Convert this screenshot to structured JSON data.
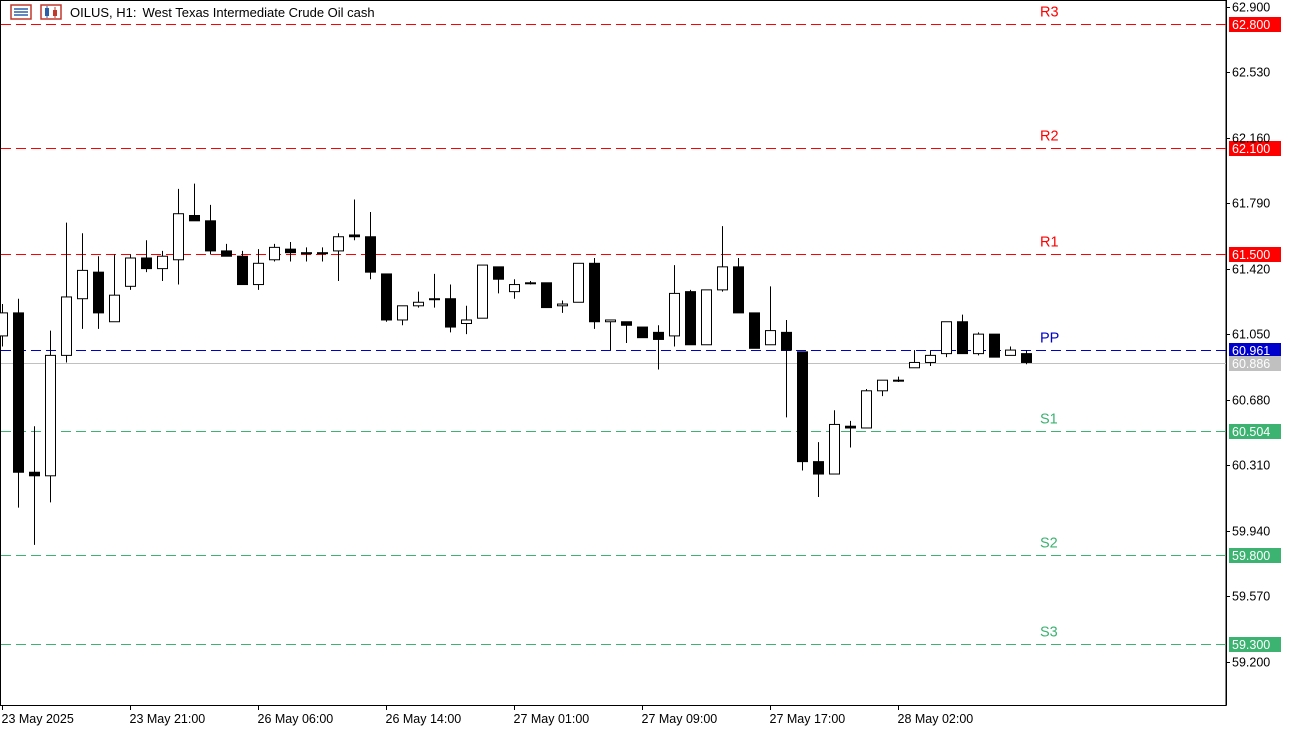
{
  "header": {
    "symbol": "OILUS, H1:",
    "description": "West Texas Intermediate Crude Oil cash"
  },
  "chart_data": {
    "type": "candlestick",
    "symbol": "OILUS",
    "timeframe": "H1",
    "y_axis": {
      "min": 58.95,
      "max": 62.92,
      "ticks": [
        "62.900",
        "62.530",
        "62.160",
        "61.790",
        "61.420",
        "61.050",
        "60.680",
        "60.310",
        "59.940",
        "59.570",
        "59.200"
      ]
    },
    "x_axis": {
      "ticks": [
        {
          "label": "23 May 2025",
          "bar": 0
        },
        {
          "label": "23 May 21:00",
          "bar": 8
        },
        {
          "label": "26 May 06:00",
          "bar": 16
        },
        {
          "label": "26 May 14:00",
          "bar": 24
        },
        {
          "label": "27 May 01:00",
          "bar": 32
        },
        {
          "label": "27 May 09:00",
          "bar": 40
        },
        {
          "label": "27 May 17:00",
          "bar": 48
        },
        {
          "label": "28 May 02:00",
          "bar": 56
        }
      ]
    },
    "pivot_levels": [
      {
        "name": "R3",
        "value": 62.8,
        "label": "62.800",
        "color": "#ff0000",
        "label_bg": "#ff0000"
      },
      {
        "name": "R2",
        "value": 62.1,
        "label": "62.100",
        "color": "#ff0000",
        "label_bg": "#ff0000"
      },
      {
        "name": "R1",
        "value": 61.5,
        "label": "61.500",
        "color": "#ff0000",
        "label_bg": "#ff0000"
      },
      {
        "name": "PP",
        "value": 60.961,
        "label": "60.961",
        "color": "#0000cd",
        "label_bg": "#0000cd"
      },
      {
        "name": "S1",
        "value": 60.504,
        "label": "60.504",
        "color": "#3cb371",
        "label_bg": "#3cb371"
      },
      {
        "name": "S2",
        "value": 59.8,
        "label": "59.800",
        "color": "#3cb371",
        "label_bg": "#3cb371"
      },
      {
        "name": "S3",
        "value": 59.3,
        "label": "59.300",
        "color": "#3cb371",
        "label_bg": "#3cb371"
      }
    ],
    "current_price": {
      "value": 60.886,
      "label": "60.886",
      "color": "#c0c0c0"
    },
    "candles": [
      {
        "o": 61.04,
        "h": 61.22,
        "l": 60.98,
        "c": 61.17
      },
      {
        "o": 61.17,
        "h": 61.25,
        "l": 60.07,
        "c": 60.27
      },
      {
        "o": 60.27,
        "h": 60.53,
        "l": 59.86,
        "c": 60.25
      },
      {
        "o": 60.25,
        "h": 61.07,
        "l": 60.1,
        "c": 60.93
      },
      {
        "o": 60.93,
        "h": 61.68,
        "l": 60.89,
        "c": 61.26
      },
      {
        "o": 61.25,
        "h": 61.62,
        "l": 61.08,
        "c": 61.41
      },
      {
        "o": 61.4,
        "h": 61.49,
        "l": 61.08,
        "c": 61.17
      },
      {
        "o": 61.12,
        "h": 61.5,
        "l": 61.12,
        "c": 61.27
      },
      {
        "o": 61.32,
        "h": 61.5,
        "l": 61.3,
        "c": 61.48
      },
      {
        "o": 61.48,
        "h": 61.58,
        "l": 61.4,
        "c": 61.42
      },
      {
        "o": 61.42,
        "h": 61.52,
        "l": 61.35,
        "c": 61.49
      },
      {
        "o": 61.47,
        "h": 61.87,
        "l": 61.33,
        "c": 61.73
      },
      {
        "o": 61.72,
        "h": 61.9,
        "l": 61.7,
        "c": 61.69
      },
      {
        "o": 61.69,
        "h": 61.78,
        "l": 61.5,
        "c": 61.52
      },
      {
        "o": 61.52,
        "h": 61.56,
        "l": 61.49,
        "c": 61.49
      },
      {
        "o": 61.49,
        "h": 61.52,
        "l": 61.33,
        "c": 61.33
      },
      {
        "o": 61.33,
        "h": 61.53,
        "l": 61.3,
        "c": 61.45
      },
      {
        "o": 61.47,
        "h": 61.56,
        "l": 61.46,
        "c": 61.54
      },
      {
        "o": 61.53,
        "h": 61.57,
        "l": 61.46,
        "c": 61.51
      },
      {
        "o": 61.51,
        "h": 61.54,
        "l": 61.46,
        "c": 61.51
      },
      {
        "o": 61.51,
        "h": 61.54,
        "l": 61.46,
        "c": 61.51
      },
      {
        "o": 61.52,
        "h": 61.62,
        "l": 61.35,
        "c": 61.6
      },
      {
        "o": 61.61,
        "h": 61.81,
        "l": 61.58,
        "c": 61.6
      },
      {
        "o": 61.6,
        "h": 61.74,
        "l": 61.36,
        "c": 61.4
      },
      {
        "o": 61.39,
        "h": 61.39,
        "l": 61.12,
        "c": 61.13
      },
      {
        "o": 61.13,
        "h": 61.21,
        "l": 61.1,
        "c": 61.21
      },
      {
        "o": 61.21,
        "h": 61.29,
        "l": 61.2,
        "c": 61.23
      },
      {
        "o": 61.25,
        "h": 61.39,
        "l": 61.2,
        "c": 61.25
      },
      {
        "o": 61.25,
        "h": 61.33,
        "l": 61.06,
        "c": 61.09
      },
      {
        "o": 61.11,
        "h": 61.21,
        "l": 61.05,
        "c": 61.13
      },
      {
        "o": 61.14,
        "h": 61.44,
        "l": 61.14,
        "c": 61.44
      },
      {
        "o": 61.43,
        "h": 61.43,
        "l": 61.28,
        "c": 61.36
      },
      {
        "o": 61.29,
        "h": 61.36,
        "l": 61.25,
        "c": 61.33
      },
      {
        "o": 61.34,
        "h": 61.35,
        "l": 61.33,
        "c": 61.34
      },
      {
        "o": 61.34,
        "h": 61.34,
        "l": 61.2,
        "c": 61.2
      },
      {
        "o": 61.21,
        "h": 61.24,
        "l": 61.17,
        "c": 61.22
      },
      {
        "o": 61.23,
        "h": 61.45,
        "l": 61.23,
        "c": 61.45
      },
      {
        "o": 61.45,
        "h": 61.48,
        "l": 61.08,
        "c": 61.12
      },
      {
        "o": 61.12,
        "h": 61.12,
        "l": 60.96,
        "c": 61.13
      },
      {
        "o": 61.12,
        "h": 61.12,
        "l": 61.0,
        "c": 61.1
      },
      {
        "o": 61.09,
        "h": 61.09,
        "l": 61.03,
        "c": 61.03
      },
      {
        "o": 61.06,
        "h": 61.1,
        "l": 60.85,
        "c": 61.02
      },
      {
        "o": 61.04,
        "h": 61.44,
        "l": 60.98,
        "c": 61.28
      },
      {
        "o": 61.29,
        "h": 61.3,
        "l": 61.0,
        "c": 60.99
      },
      {
        "o": 60.99,
        "h": 61.3,
        "l": 60.99,
        "c": 61.3
      },
      {
        "o": 61.3,
        "h": 61.66,
        "l": 61.29,
        "c": 61.43
      },
      {
        "o": 61.43,
        "h": 61.48,
        "l": 61.17,
        "c": 61.17
      },
      {
        "o": 61.17,
        "h": 61.17,
        "l": 60.98,
        "c": 60.97
      },
      {
        "o": 60.99,
        "h": 61.32,
        "l": 60.99,
        "c": 61.07
      },
      {
        "o": 61.06,
        "h": 61.13,
        "l": 60.58,
        "c": 60.96
      },
      {
        "o": 60.95,
        "h": 60.95,
        "l": 60.28,
        "c": 60.33
      },
      {
        "o": 60.33,
        "h": 60.44,
        "l": 60.13,
        "c": 60.26
      },
      {
        "o": 60.26,
        "h": 60.62,
        "l": 60.26,
        "c": 60.54
      },
      {
        "o": 60.53,
        "h": 60.56,
        "l": 60.41,
        "c": 60.52
      },
      {
        "o": 60.52,
        "h": 60.74,
        "l": 60.52,
        "c": 60.73
      },
      {
        "o": 60.73,
        "h": 60.79,
        "l": 60.7,
        "c": 60.79
      },
      {
        "o": 60.79,
        "h": 60.81,
        "l": 60.78,
        "c": 60.79
      },
      {
        "o": 60.86,
        "h": 60.96,
        "l": 60.86,
        "c": 60.89
      },
      {
        "o": 60.89,
        "h": 60.96,
        "l": 60.87,
        "c": 60.93
      },
      {
        "o": 60.94,
        "h": 61.12,
        "l": 60.92,
        "c": 61.12
      },
      {
        "o": 61.12,
        "h": 61.16,
        "l": 60.94,
        "c": 60.94
      },
      {
        "o": 60.94,
        "h": 61.06,
        "l": 60.93,
        "c": 61.05
      },
      {
        "o": 61.05,
        "h": 61.05,
        "l": 60.92,
        "c": 60.92
      },
      {
        "o": 60.93,
        "h": 60.98,
        "l": 60.93,
        "c": 60.96
      },
      {
        "o": 60.94,
        "h": 60.96,
        "l": 60.88,
        "c": 60.89
      }
    ]
  }
}
